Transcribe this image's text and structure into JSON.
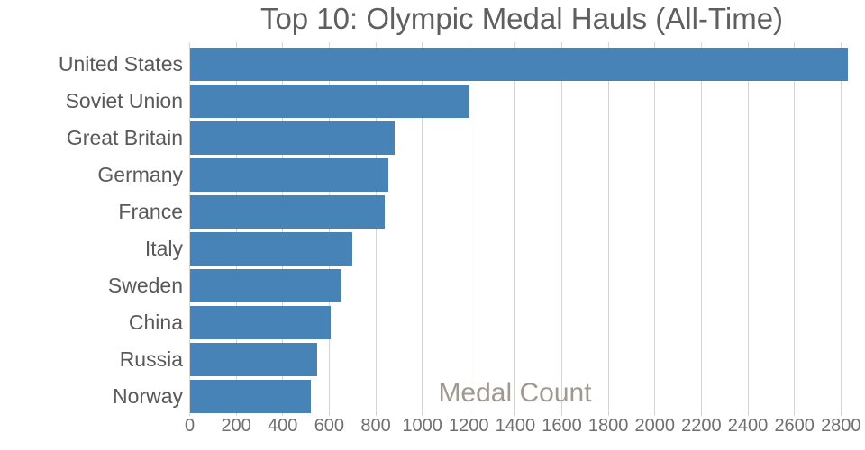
{
  "chart_data": {
    "type": "bar",
    "orientation": "horizontal",
    "title": "Top 10: Olympic Medal Hauls (All-Time)",
    "xlabel": "Medal Count",
    "ylabel": "",
    "categories": [
      "United States",
      "Soviet Union",
      "Great Britain",
      "Germany",
      "France",
      "Italy",
      "Sweden",
      "China",
      "Russia",
      "Norway"
    ],
    "values": [
      2828,
      1204,
      883,
      855,
      840,
      701,
      652,
      608,
      547,
      520
    ],
    "xlim": [
      0,
      2895
    ],
    "xticks": [
      0,
      200,
      400,
      600,
      800,
      1000,
      1200,
      1400,
      1600,
      1800,
      2000,
      2200,
      2400,
      2600,
      2800
    ],
    "grid": "vertical",
    "legend": "none",
    "colors": {
      "bar": "#4783b6",
      "grid": "#d7d5d1",
      "title": "#5f5f5f",
      "category_label": "#595959",
      "tick_label": "#6f6f6f",
      "xlabel": "#a19890",
      "background": "#ffffff"
    }
  }
}
